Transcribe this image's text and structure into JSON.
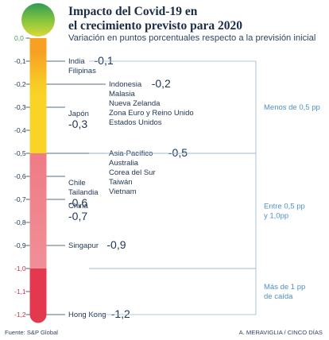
{
  "header": {
    "title_line1": "Impacto del Covid-19 en",
    "title_line2": "el crecimiento previsto para 2020",
    "subtitle": "Variación en puntos porcentuales respecto a la previsión inicial"
  },
  "footer": {
    "source": "Fuente: S&P Global",
    "credit": "A. MERAVIGLIA / CINCO DÍAS"
  },
  "chart_data": {
    "type": "thermometer",
    "title": "Impacto del Covid-19 en el crecimiento previsto para 2020",
    "subtitle": "Variación en puntos porcentuales respecto a la previsión inicial",
    "ylim": [
      -1.2,
      0
    ],
    "ticks": [
      "0,0",
      "-0,1",
      "-0,2",
      "-0,3",
      "-0,4",
      "-0,5",
      "-0,6",
      "-0,7",
      "-0,8",
      "-0,9",
      "-1,0",
      "-1,1",
      "-1,2"
    ],
    "tick_values": [
      0,
      -0.1,
      -0.2,
      -0.3,
      -0.4,
      -0.5,
      -0.6,
      -0.7,
      -0.8,
      -0.9,
      -1.0,
      -1.1,
      -1.2
    ],
    "colors": {
      "green": "#8cc63e",
      "yellow": "#f9d326",
      "orange": "#f29b1f",
      "pink": "#ef7b85",
      "red": "#e3384e",
      "bracket": "#9ab4cf"
    },
    "points": [
      {
        "value": -0.1,
        "label": "-0,1",
        "countries": [
          "India",
          "Filipinas"
        ],
        "label_side": "right"
      },
      {
        "value": -0.2,
        "label": "-0,2",
        "countries": [
          "Indonesia",
          "Malasia",
          "Nueva Zelanda",
          "Zona Euro y Reino Unido",
          "Estados Unidos"
        ],
        "label_side": "right"
      },
      {
        "value": -0.3,
        "label": "-0,3",
        "countries": [
          "Japón"
        ],
        "label_side": "below"
      },
      {
        "value": -0.5,
        "label": "-0,5",
        "countries": [
          "Asia-Pacífico",
          "Australia",
          "Corea del Sur",
          "Taiwán",
          "Vietnam"
        ],
        "label_side": "right"
      },
      {
        "value": -0.6,
        "label": "-0,6",
        "countries": [
          "Chile",
          "Tailandia"
        ],
        "label_side": "below"
      },
      {
        "value": -0.7,
        "label": "-0,7",
        "countries": [
          "China"
        ],
        "label_side": "below"
      },
      {
        "value": -0.9,
        "label": "-0,9",
        "countries": [
          "Singapur"
        ],
        "label_side": "right"
      },
      {
        "value": -1.2,
        "label": "-1,2",
        "countries": [
          "Hong Kong"
        ],
        "label_side": "right"
      }
    ],
    "brackets": [
      {
        "from": -0.1,
        "to": -0.5,
        "lines": [
          "Menos de 0,5 pp"
        ]
      },
      {
        "from": -0.5,
        "to": -1.0,
        "lines": [
          "Entre 0,5 pp",
          "y 1,0pp"
        ]
      },
      {
        "from": -1.0,
        "to": -1.2,
        "lines": [
          "Más de 1 pp",
          "de caída"
        ]
      }
    ]
  }
}
